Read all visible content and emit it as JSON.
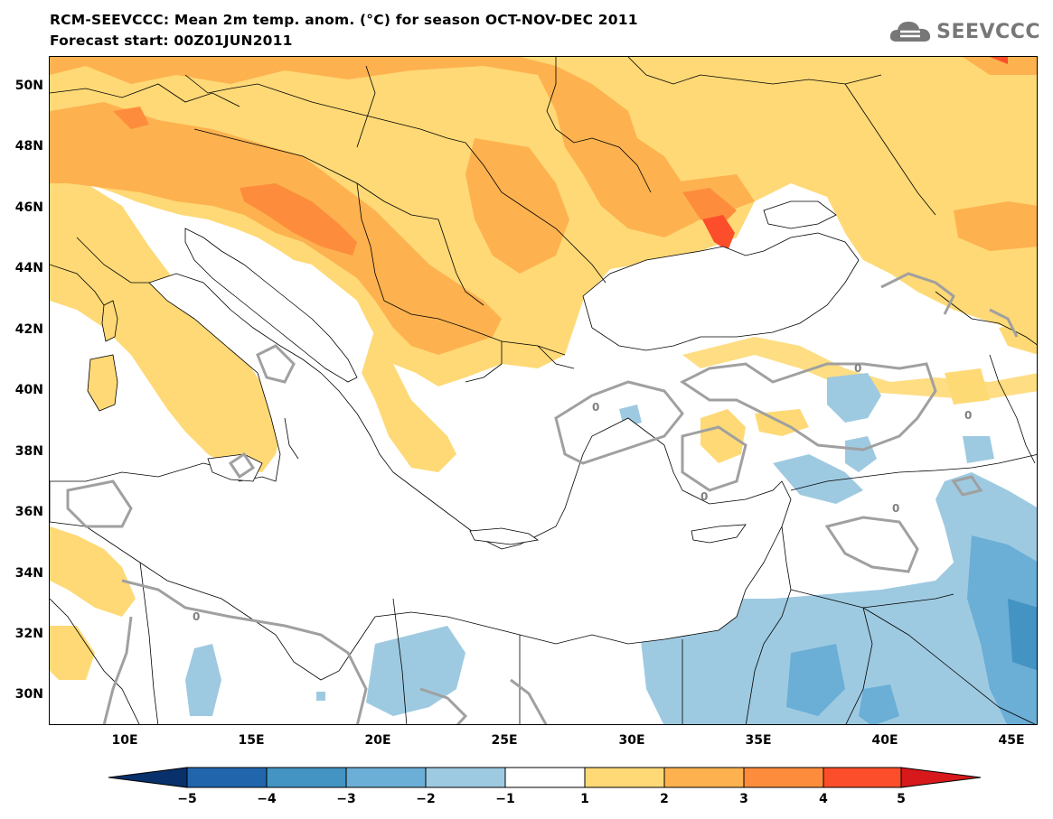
{
  "header": {
    "title_line1": "RCM-SEEVCCC: Mean 2m temp. anom. (°C) for season OCT-NOV-DEC 2011",
    "title_line2": "Forecast start: 00Z01JUN2011",
    "logo_text": "SEEVCCC"
  },
  "map": {
    "lon_range": [
      7,
      46
    ],
    "lat_range": [
      29,
      51
    ],
    "lat_labels": [
      {
        "value": 50,
        "label": "50N"
      },
      {
        "value": 48,
        "label": "48N"
      },
      {
        "value": 46,
        "label": "46N"
      },
      {
        "value": 44,
        "label": "44N"
      },
      {
        "value": 42,
        "label": "42N"
      },
      {
        "value": 40,
        "label": "40N"
      },
      {
        "value": 38,
        "label": "38N"
      },
      {
        "value": 36,
        "label": "36N"
      },
      {
        "value": 34,
        "label": "34N"
      },
      {
        "value": 32,
        "label": "32N"
      },
      {
        "value": 30,
        "label": "30N"
      }
    ],
    "lon_labels": [
      {
        "value": 10,
        "label": "10E"
      },
      {
        "value": 15,
        "label": "15E"
      },
      {
        "value": 20,
        "label": "20E"
      },
      {
        "value": 25,
        "label": "25E"
      },
      {
        "value": 30,
        "label": "30E"
      },
      {
        "value": 35,
        "label": "35E"
      },
      {
        "value": 40,
        "label": "40E"
      },
      {
        "value": 45,
        "label": "45E"
      }
    ],
    "zero_contour_label": "0"
  },
  "colorbar": {
    "labels": [
      "−5",
      "−4",
      "−3",
      "−2",
      "−1",
      "1",
      "2",
      "3",
      "4",
      "5"
    ],
    "colors": [
      "#08306b",
      "#2166ac",
      "#4393c3",
      "#6baed6",
      "#9ecae1",
      "#ffffff",
      "#fed976",
      "#fdb24f",
      "#fd8d3c",
      "#fc4e2a",
      "#d7191c"
    ],
    "positive_colors": {
      "c1": "#fed976",
      "c2": "#fdb24f",
      "c3": "#fd8d3c",
      "c4": "#fc4e2a"
    },
    "negative_colors": {
      "c1": "#9ecae1",
      "c2": "#6baed6",
      "c3": "#4393c3"
    },
    "contour_color": "#a0a0a0",
    "border_color": "#000000"
  }
}
